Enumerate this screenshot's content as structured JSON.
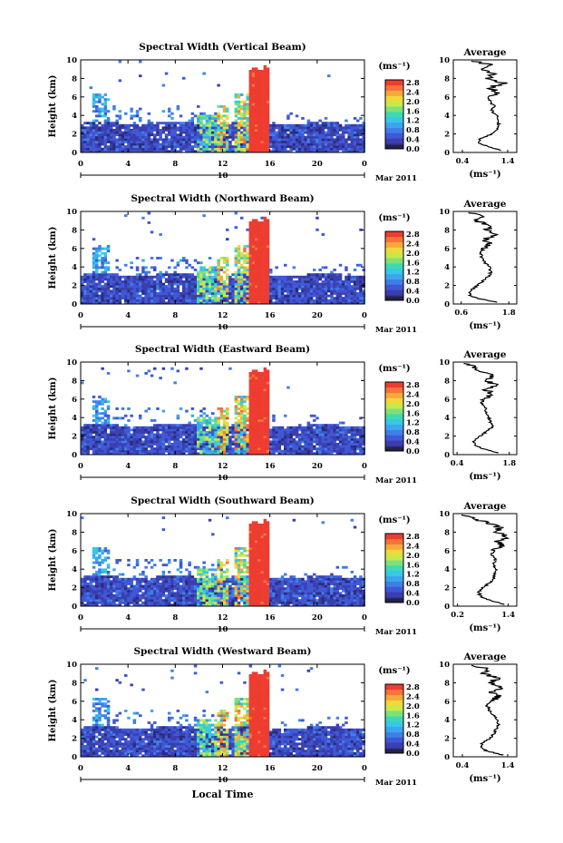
{
  "chart_data": [
    {
      "type": "heatmap",
      "title": "Spectral Width (Vertical Beam)",
      "ylabel": "Height (km)",
      "xticks": [
        "0",
        "4",
        "8",
        "12",
        "16",
        "20",
        "0"
      ],
      "yticks": [
        "0",
        "2",
        "4",
        "6",
        "8",
        "10"
      ],
      "date_day": "10",
      "date_label": "Mar 2011",
      "xlim": [
        0,
        24
      ],
      "ylim": [
        0,
        10
      ],
      "colorbar": {
        "unit": "(ms⁻¹)",
        "ticks": [
          "0.0",
          "0.4",
          "0.8",
          "1.2",
          "1.6",
          "2.0",
          "2.4",
          "2.8"
        ],
        "range": [
          0,
          2.8
        ]
      },
      "profile": {
        "title": "Average",
        "xticks": [
          "0.4",
          "1.4"
        ],
        "xlim": [
          0.2,
          1.6
        ],
        "xlabel": "(ms⁻¹)",
        "yticks": [
          "0",
          "2",
          "4",
          "6",
          "8",
          "10"
        ],
        "heights": [
          0.2,
          0.6,
          1.0,
          1.5,
          2.0,
          2.5,
          3.0,
          3.5,
          4.0,
          4.5,
          5.0,
          5.5,
          6.0,
          6.5,
          7.0,
          7.5,
          8.0,
          8.5,
          9.0,
          9.5,
          9.9
        ],
        "values": [
          1.25,
          1.0,
          0.75,
          0.8,
          1.05,
          1.15,
          1.2,
          1.2,
          1.15,
          1.05,
          1.1,
          1.0,
          1.0,
          1.2,
          1.0,
          1.3,
          0.95,
          1.1,
          0.8,
          1.0,
          0.6
        ]
      }
    },
    {
      "type": "heatmap",
      "title": "Spectral Width (Northward Beam)",
      "ylabel": "Height (km)",
      "xticks": [
        "0",
        "4",
        "8",
        "12",
        "16",
        "20",
        "0"
      ],
      "yticks": [
        "0",
        "2",
        "4",
        "6",
        "8",
        "10"
      ],
      "date_day": "10",
      "date_label": "Mar 2011",
      "xlim": [
        0,
        24
      ],
      "ylim": [
        0,
        10
      ],
      "colorbar": {
        "unit": "(ms⁻¹)",
        "ticks": [
          "0.0",
          "0.4",
          "0.8",
          "1.2",
          "1.6",
          "2.0",
          "2.4",
          "2.8"
        ],
        "range": [
          0,
          2.8
        ]
      },
      "profile": {
        "title": "Average",
        "xticks": [
          "0.6",
          "1.8"
        ],
        "xlim": [
          0.4,
          2.0
        ],
        "xlabel": "(ms⁻¹)",
        "yticks": [
          "0",
          "2",
          "4",
          "6",
          "8",
          "10"
        ],
        "heights": [
          0.2,
          0.6,
          1.0,
          1.5,
          2.0,
          2.5,
          3.0,
          3.5,
          4.0,
          4.5,
          5.0,
          5.5,
          6.0,
          6.5,
          7.0,
          7.5,
          8.0,
          8.5,
          9.0,
          9.5,
          9.9
        ],
        "values": [
          1.5,
          1.0,
          0.8,
          0.85,
          1.0,
          1.15,
          1.3,
          1.35,
          1.3,
          1.2,
          1.1,
          1.1,
          1.15,
          1.3,
          1.2,
          1.45,
          1.25,
          1.3,
          1.0,
          1.1,
          0.8
        ]
      }
    },
    {
      "type": "heatmap",
      "title": "Spectral Width (Eastward Beam)",
      "ylabel": "Height (km)",
      "xticks": [
        "0",
        "4",
        "8",
        "12",
        "16",
        "20",
        "0"
      ],
      "yticks": [
        "0",
        "2",
        "4",
        "6",
        "8",
        "10"
      ],
      "date_day": "10",
      "date_label": "Mar 2011",
      "xlim": [
        0,
        24
      ],
      "ylim": [
        0,
        10
      ],
      "colorbar": {
        "unit": "(ms⁻¹)",
        "ticks": [
          "0.0",
          "0.4",
          "0.8",
          "1.2",
          "1.6",
          "2.0",
          "2.4",
          "2.8"
        ],
        "range": [
          0,
          2.8
        ]
      },
      "profile": {
        "title": "Average",
        "xticks": [
          "0.4",
          "1.8"
        ],
        "xlim": [
          0.3,
          2.0
        ],
        "xlabel": "(ms⁻¹)",
        "yticks": [
          "0",
          "2",
          "4",
          "6",
          "8",
          "10"
        ],
        "heights": [
          0.2,
          0.6,
          1.0,
          1.5,
          2.0,
          2.5,
          3.0,
          3.5,
          4.0,
          4.5,
          5.0,
          5.5,
          6.0,
          6.5,
          7.0,
          7.5,
          8.0,
          8.5,
          9.0,
          9.5,
          9.9
        ],
        "values": [
          1.5,
          1.1,
          0.9,
          0.85,
          1.0,
          1.2,
          1.35,
          1.3,
          1.25,
          1.2,
          1.15,
          1.05,
          1.1,
          1.3,
          1.2,
          1.45,
          1.2,
          1.35,
          1.0,
          0.9,
          0.6
        ]
      }
    },
    {
      "type": "heatmap",
      "title": "Spectral Width (Southward Beam)",
      "ylabel": "Height (km)",
      "xticks": [
        "0",
        "4",
        "8",
        "12",
        "16",
        "20",
        "0"
      ],
      "yticks": [
        "0",
        "2",
        "4",
        "6",
        "8",
        "10"
      ],
      "date_day": "10",
      "date_label": "Mar 2011",
      "xlim": [
        0,
        24
      ],
      "ylim": [
        0,
        10
      ],
      "colorbar": {
        "unit": "(ms⁻¹)",
        "ticks": [
          "0.0",
          "0.4",
          "0.8",
          "1.2",
          "1.6",
          "2.0",
          "2.4",
          "2.8"
        ],
        "range": [
          0,
          2.8
        ]
      },
      "profile": {
        "title": "Average",
        "xticks": [
          "0.2",
          "1.4"
        ],
        "xlim": [
          0.1,
          1.6
        ],
        "xlabel": "(ms⁻¹)",
        "yticks": [
          "0",
          "2",
          "4",
          "6",
          "8",
          "10"
        ],
        "heights": [
          0.2,
          0.6,
          1.0,
          1.5,
          2.0,
          2.5,
          3.0,
          3.5,
          4.0,
          4.5,
          5.0,
          5.5,
          6.0,
          6.5,
          7.0,
          7.5,
          8.0,
          8.5,
          9.0,
          9.5,
          9.9
        ],
        "values": [
          1.3,
          1.0,
          0.75,
          0.7,
          0.8,
          0.95,
          1.05,
          1.1,
          1.1,
          1.05,
          1.1,
          1.0,
          1.05,
          1.25,
          1.15,
          1.35,
          1.1,
          1.2,
          0.9,
          0.6,
          0.3
        ]
      }
    },
    {
      "type": "heatmap",
      "title": "Spectral Width (Westward Beam)",
      "ylabel": "Height (km)",
      "xlabel": "Local Time",
      "xticks": [
        "0",
        "4",
        "8",
        "12",
        "16",
        "20",
        "0"
      ],
      "yticks": [
        "0",
        "2",
        "4",
        "6",
        "8",
        "10"
      ],
      "date_day": "10",
      "date_label": "Mar 2011",
      "xlim": [
        0,
        24
      ],
      "ylim": [
        0,
        10
      ],
      "colorbar": {
        "unit": "(ms⁻¹)",
        "ticks": [
          "0.0",
          "0.4",
          "0.8",
          "1.2",
          "1.6",
          "2.0",
          "2.4",
          "2.8"
        ],
        "range": [
          0,
          2.8
        ]
      },
      "profile": {
        "title": "Average",
        "xticks": [
          "0.4",
          "1.4"
        ],
        "xlim": [
          0.2,
          1.6
        ],
        "xlabel": "(ms⁻¹)",
        "yticks": [
          "0",
          "2",
          "4",
          "6",
          "8",
          "10"
        ],
        "heights": [
          0.2,
          0.6,
          1.0,
          1.5,
          2.0,
          2.5,
          3.0,
          3.5,
          4.0,
          4.5,
          5.0,
          5.5,
          6.0,
          6.5,
          7.0,
          7.5,
          8.0,
          8.5,
          9.0,
          9.5,
          9.9
        ],
        "values": [
          1.3,
          0.95,
          0.8,
          0.85,
          1.0,
          1.1,
          1.15,
          1.2,
          1.15,
          1.1,
          1.0,
          0.95,
          1.0,
          1.2,
          1.05,
          1.3,
          1.0,
          1.2,
          0.85,
          1.0,
          0.6
        ]
      }
    }
  ]
}
